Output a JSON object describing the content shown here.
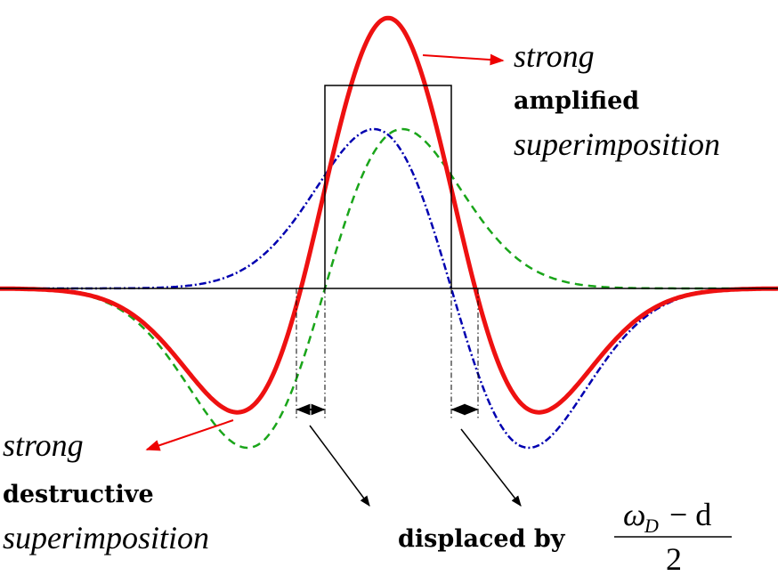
{
  "annotations": [
    {
      "lines": [
        "strong",
        "amplified",
        "superimposition"
      ]
    },
    {
      "lines": [
        "strong",
        "destructive",
        "superimposition"
      ]
    }
  ],
  "displacement": {
    "label": "displaced by",
    "numerator_symbol": "ω",
    "numerator_subscript": "D",
    "numerator_rest": "− d",
    "denominator": "2"
  }
}
